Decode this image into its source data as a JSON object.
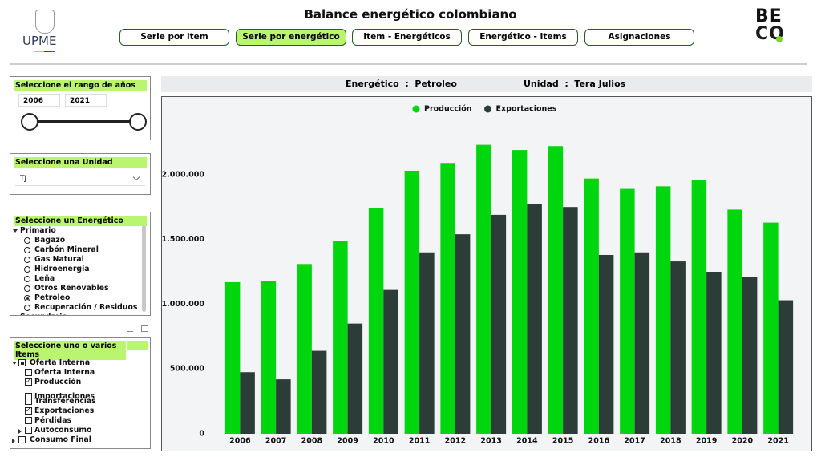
{
  "header": {
    "title": "Balance energético colombiano",
    "logo_left": "UPME",
    "logo_right_top": "BE",
    "logo_right_bottom": "CO"
  },
  "nav": {
    "buttons": [
      "Serie por item",
      "Serie por energético",
      "Item - Energéticos",
      "Energético - Items",
      "Asignaciones"
    ],
    "active": 1
  },
  "years_slicer": {
    "title": "Seleccione el rango de años",
    "start": "2006",
    "end": "2021"
  },
  "unit_slicer": {
    "title": "Seleccione una Unidad",
    "value": "TJ"
  },
  "energy_slicer": {
    "title": "Seleccione un Energético",
    "tree": [
      {
        "label": "Primario",
        "level": 0,
        "expander": "down"
      },
      {
        "label": "Bagazo",
        "level": 1,
        "selected": false
      },
      {
        "label": "Carbón Mineral",
        "level": 1,
        "selected": false
      },
      {
        "label": "Gas Natural",
        "level": 1,
        "selected": false
      },
      {
        "label": "Hidroenergía",
        "level": 1,
        "selected": false
      },
      {
        "label": "Leña",
        "level": 1,
        "selected": false
      },
      {
        "label": "Otros Renovables",
        "level": 1,
        "selected": false
      },
      {
        "label": "Petroleo",
        "level": 1,
        "selected": true
      },
      {
        "label": "Recuperación / Residuos",
        "level": 1,
        "selected": false
      },
      {
        "label": "Secundario",
        "level": 0,
        "expander": "right"
      }
    ]
  },
  "items_slicer": {
    "title": "Seleccione uno o varios Items",
    "tree": [
      {
        "label": "Oferta Interna",
        "level": 0,
        "expander": "down",
        "state": "partial"
      },
      {
        "label": "Oferta Interna",
        "level": 1,
        "state": false
      },
      {
        "label": "Producción",
        "level": 1,
        "state": true
      },
      {
        "label": "Importaciones",
        "level": 1,
        "state": false
      },
      {
        "label": "Transferencias",
        "level": 1,
        "state": false
      },
      {
        "label": "Exportaciones",
        "level": 1,
        "state": true
      },
      {
        "label": "Pérdidas",
        "level": 1,
        "state": false
      },
      {
        "label": "Autoconsumo",
        "level": 1,
        "expander": "right",
        "state": false
      },
      {
        "label": "Consumo Final",
        "level": 0,
        "expander": "right",
        "state": false
      }
    ]
  },
  "chart_header": {
    "energy": "Energético  :  Petroleo",
    "unit": "Unidad  :  Tera Julios"
  },
  "chart_data": {
    "type": "bar",
    "categories": [
      "2006",
      "2007",
      "2008",
      "2009",
      "2010",
      "2011",
      "2012",
      "2013",
      "2014",
      "2015",
      "2016",
      "2017",
      "2018",
      "2019",
      "2020",
      "2021"
    ],
    "series": [
      {
        "name": "Producción",
        "color": "#00d60e",
        "values": [
          1170000,
          1180000,
          1310000,
          1490000,
          1740000,
          2030000,
          2090000,
          2230000,
          2190000,
          2220000,
          1970000,
          1890000,
          1910000,
          1960000,
          1730000,
          1630000
        ]
      },
      {
        "name": "Exportaciones",
        "color": "#2b3d36",
        "values": [
          475000,
          420000,
          640000,
          850000,
          1110000,
          1400000,
          1540000,
          1690000,
          1770000,
          1750000,
          1380000,
          1400000,
          1330000,
          1250000,
          1210000,
          1030000
        ]
      }
    ],
    "ylim": [
      0,
      2500000
    ],
    "yticks": [
      0,
      {
        "value": 500000,
        "label": "500.000"
      },
      {
        "value": 1000000,
        "label": "1.000.000"
      },
      {
        "value": 1500000,
        "label": "1.500.000"
      },
      {
        "value": 2000000,
        "label": "2.000.000"
      }
    ],
    "grid": false,
    "legend": "top"
  }
}
